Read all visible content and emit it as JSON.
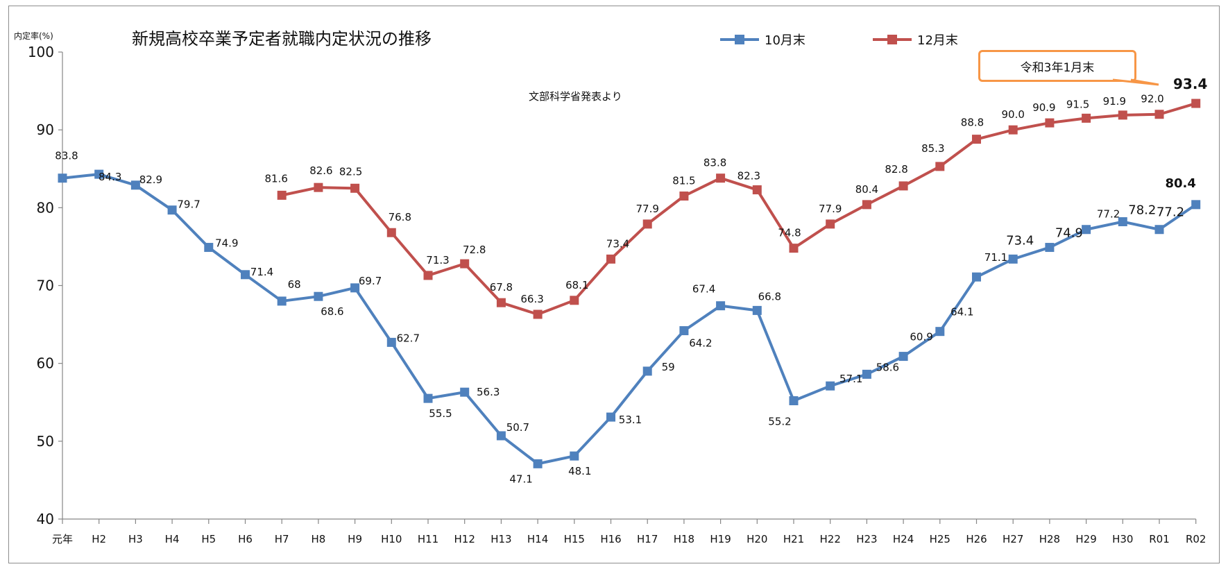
{
  "title": "新規高校卒業予定者就職内定状況の推移",
  "ylabel": "内定率(%)",
  "source_note": "文部科学省発表より",
  "callout": "令和3年1月末",
  "colors": {
    "oct": "#4f81bd",
    "dec": "#c0504d",
    "highlight": "#ff0000",
    "callout_border": "#f79646"
  },
  "chart_data": {
    "type": "line",
    "title": "新規高校卒業予定者就職内定状況の推移",
    "ylabel": "内定率(%)",
    "xlabel": "",
    "ylim": [
      40,
      100
    ],
    "yticks": [
      40,
      50,
      60,
      70,
      80,
      90,
      100
    ],
    "categories": [
      "元年",
      "H2",
      "H3",
      "H4",
      "H5",
      "H6",
      "H7",
      "H8",
      "H9",
      "H10",
      "H11",
      "H12",
      "H13",
      "H14",
      "H15",
      "H16",
      "H17",
      "H18",
      "H19",
      "H20",
      "H21",
      "H22",
      "H23",
      "H24",
      "H25",
      "H26",
      "H27",
      "H28",
      "H29",
      "H30",
      "R01",
      "R02"
    ],
    "series": [
      {
        "name": "10月末",
        "color": "#4f81bd",
        "values": [
          83.8,
          84.3,
          82.9,
          79.7,
          74.9,
          71.4,
          68,
          68.6,
          69.7,
          62.7,
          55.5,
          56.3,
          50.7,
          47.1,
          48.1,
          53.1,
          59,
          64.2,
          67.4,
          66.8,
          55.2,
          57.1,
          58.6,
          60.9,
          64.1,
          71.1,
          73.4,
          74.9,
          77.2,
          78.2,
          77.2,
          80.4
        ],
        "labels": [
          "83.8",
          "84.3",
          "82.9",
          "79.7",
          "74.9",
          "71.4",
          "68",
          "68.6",
          "69.7",
          "62.7",
          "55.5",
          "56.3",
          "50.7",
          "47.1",
          "48.1",
          "53.1",
          "59",
          "64.2",
          "67.4",
          "66.8",
          "55.2",
          "57.1",
          "58.6",
          "60.9",
          "64.1",
          "71.1",
          "73.4",
          "74.9",
          "77.2",
          "78.2",
          "77.2",
          "80.4"
        ]
      },
      {
        "name": "12月末",
        "color": "#c0504d",
        "values": [
          null,
          null,
          null,
          null,
          null,
          null,
          81.6,
          82.6,
          82.5,
          76.8,
          71.3,
          72.8,
          67.8,
          66.3,
          68.1,
          73.4,
          77.9,
          81.5,
          83.8,
          82.3,
          74.8,
          77.9,
          80.4,
          82.8,
          85.3,
          88.8,
          90.0,
          90.9,
          91.5,
          91.9,
          92.0,
          93.4
        ],
        "labels": [
          "",
          "",
          "",
          "",
          "",
          "",
          "81.6",
          "82.6",
          "82.5",
          "76.8",
          "71.3",
          "72.8",
          "67.8",
          "66.3",
          "68.1",
          "73.4",
          "77.9",
          "81.5",
          "83.8",
          "82.3",
          "74.8",
          "77.9",
          "80.4",
          "82.8",
          "85.3",
          "88.8",
          "90.0",
          "90.9",
          "91.5",
          "91.9",
          "92.0",
          "93.4"
        ]
      }
    ],
    "grid": false,
    "legend": "top"
  }
}
